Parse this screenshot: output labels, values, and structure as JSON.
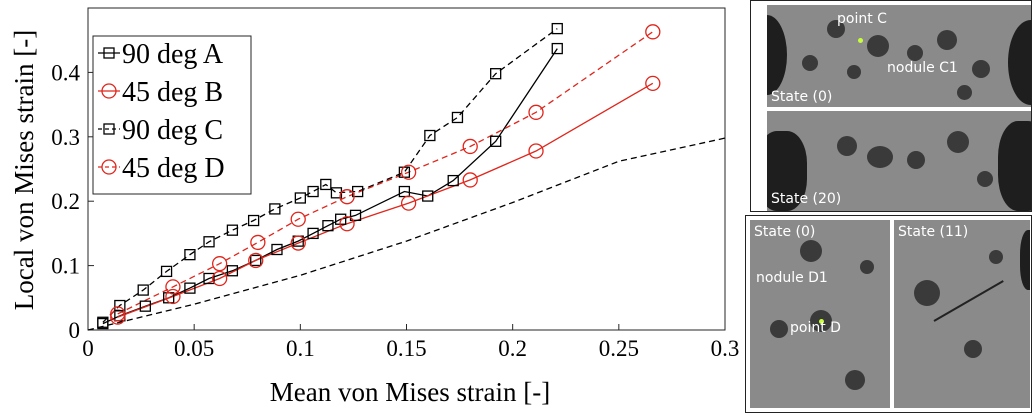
{
  "chart_data": {
    "type": "line",
    "xlabel": "Mean von Mises strain [-]",
    "ylabel": "Local von Mises strain [-]",
    "xlim": [
      0,
      0.3
    ],
    "ylim": [
      0,
      0.5
    ],
    "xticks": [
      "0",
      "0.05",
      "0.1",
      "0.15",
      "0.2",
      "0.25",
      "0.3"
    ],
    "yticks": [
      "0",
      "0.1",
      "0.2",
      "0.3",
      "0.4"
    ],
    "legend_position": "top-left",
    "series": [
      {
        "name": "90 deg A",
        "color": "#000000",
        "dash": "solid",
        "marker": "square",
        "points": [
          [
            0.007,
            0.01
          ],
          [
            0.015,
            0.022
          ],
          [
            0.027,
            0.037
          ],
          [
            0.038,
            0.05
          ],
          [
            0.048,
            0.065
          ],
          [
            0.057,
            0.08
          ],
          [
            0.068,
            0.092
          ],
          [
            0.079,
            0.108
          ],
          [
            0.089,
            0.125
          ],
          [
            0.099,
            0.138
          ],
          [
            0.106,
            0.15
          ],
          [
            0.113,
            0.162
          ],
          [
            0.119,
            0.172
          ],
          [
            0.126,
            0.178
          ],
          [
            0.149,
            0.215
          ],
          [
            0.16,
            0.208
          ],
          [
            0.172,
            0.232
          ],
          [
            0.192,
            0.293
          ],
          [
            0.221,
            0.437
          ]
        ]
      },
      {
        "name": "45 deg B",
        "color": "#e0251b",
        "dash": "solid",
        "marker": "circle",
        "points": [
          [
            0.014,
            0.02
          ],
          [
            0.04,
            0.052
          ],
          [
            0.062,
            0.08
          ],
          [
            0.079,
            0.108
          ],
          [
            0.099,
            0.135
          ],
          [
            0.122,
            0.165
          ],
          [
            0.151,
            0.197
          ],
          [
            0.18,
            0.233
          ],
          [
            0.211,
            0.278
          ],
          [
            0.266,
            0.383
          ]
        ]
      },
      {
        "name": "90 deg C",
        "color": "#000000",
        "dash": "dashed",
        "marker": "square",
        "points": [
          [
            0.007,
            0.012
          ],
          [
            0.015,
            0.038
          ],
          [
            0.026,
            0.062
          ],
          [
            0.037,
            0.091
          ],
          [
            0.048,
            0.117
          ],
          [
            0.057,
            0.137
          ],
          [
            0.068,
            0.155
          ],
          [
            0.078,
            0.17
          ],
          [
            0.088,
            0.188
          ],
          [
            0.1,
            0.205
          ],
          [
            0.106,
            0.215
          ],
          [
            0.112,
            0.226
          ],
          [
            0.117,
            0.213
          ],
          [
            0.127,
            0.215
          ],
          [
            0.149,
            0.245
          ],
          [
            0.161,
            0.302
          ],
          [
            0.174,
            0.33
          ],
          [
            0.192,
            0.398
          ],
          [
            0.221,
            0.468
          ]
        ]
      },
      {
        "name": "45 deg D",
        "color": "#e0251b",
        "dash": "dashed",
        "marker": "circle",
        "points": [
          [
            0.014,
            0.025
          ],
          [
            0.04,
            0.067
          ],
          [
            0.062,
            0.103
          ],
          [
            0.08,
            0.136
          ],
          [
            0.099,
            0.172
          ],
          [
            0.122,
            0.207
          ],
          [
            0.151,
            0.245
          ],
          [
            0.18,
            0.285
          ],
          [
            0.211,
            0.338
          ],
          [
            0.266,
            0.463
          ]
        ]
      },
      {
        "name": "",
        "color": "#000000",
        "dash": "dashed",
        "marker": "none",
        "points": [
          [
            0.0,
            0.0
          ],
          [
            0.05,
            0.04
          ],
          [
            0.1,
            0.085
          ],
          [
            0.15,
            0.138
          ],
          [
            0.2,
            0.198
          ],
          [
            0.25,
            0.262
          ],
          [
            0.3,
            0.298
          ]
        ]
      }
    ]
  },
  "images": {
    "top": {
      "labels": [
        "point C",
        "nodule C1",
        "State (0)",
        "State (20)"
      ]
    },
    "bottom": {
      "labels": [
        "State (0)",
        "State (11)",
        "nodule D1",
        "point D"
      ]
    }
  }
}
